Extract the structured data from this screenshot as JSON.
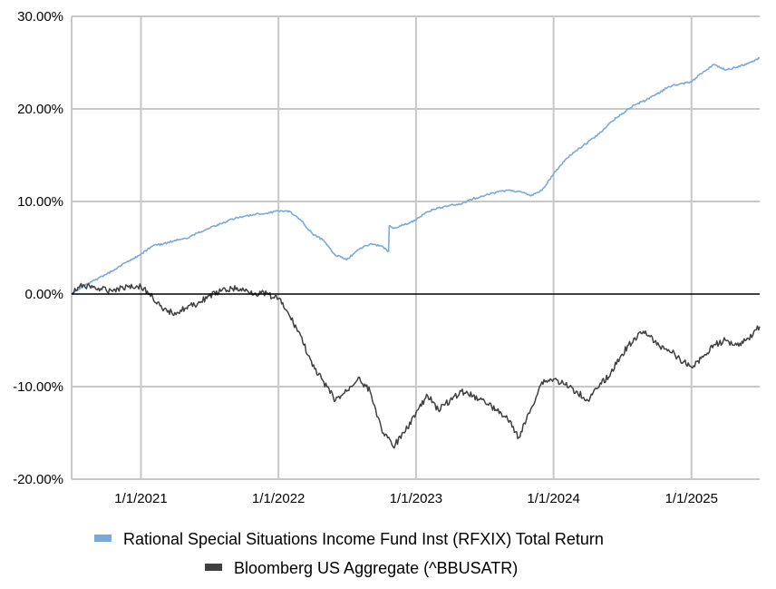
{
  "chart_data": {
    "type": "line",
    "title": "",
    "xlabel": "",
    "ylabel": "",
    "x_tick_labels": [
      "1/1/2021",
      "1/1/2022",
      "1/1/2023",
      "1/1/2024",
      "1/1/2025"
    ],
    "y_tick_labels": [
      "30.00%",
      "20.00%",
      "10.00%",
      "0.00%",
      "-10.00%",
      "-20.00%"
    ],
    "y_tick_values": [
      30,
      20,
      10,
      0,
      -10,
      -20
    ],
    "xlim": [
      "2020-07-01",
      "2025-07-01"
    ],
    "ylim": [
      -20,
      30
    ],
    "y_unit": "percent",
    "grid": true,
    "legend_position": "bottom",
    "series": [
      {
        "name": "Rational Special Situations Income Fund Inst (RFXIX) Total Return",
        "color": "#7aaadc",
        "points": [
          [
            "2020-07-01",
            0.0
          ],
          [
            "2020-08-01",
            0.9
          ],
          [
            "2020-09-01",
            1.5
          ],
          [
            "2020-10-01",
            2.1
          ],
          [
            "2020-11-01",
            2.9
          ],
          [
            "2020-12-01",
            3.6
          ],
          [
            "2021-01-01",
            4.3
          ],
          [
            "2021-02-01",
            5.2
          ],
          [
            "2021-03-01",
            5.4
          ],
          [
            "2021-04-01",
            5.8
          ],
          [
            "2021-05-01",
            6.0
          ],
          [
            "2021-06-01",
            6.6
          ],
          [
            "2021-07-01",
            7.1
          ],
          [
            "2021-08-01",
            7.6
          ],
          [
            "2021-09-01",
            8.1
          ],
          [
            "2021-10-01",
            8.4
          ],
          [
            "2021-11-01",
            8.6
          ],
          [
            "2021-12-01",
            8.7
          ],
          [
            "2022-01-01",
            9.0
          ],
          [
            "2022-02-01",
            8.9
          ],
          [
            "2022-03-01",
            8.0
          ],
          [
            "2022-04-01",
            6.5
          ],
          [
            "2022-05-01",
            5.8
          ],
          [
            "2022-06-01",
            4.2
          ],
          [
            "2022-07-01",
            3.7
          ],
          [
            "2022-08-01",
            4.8
          ],
          [
            "2022-09-01",
            5.4
          ],
          [
            "2022-10-01",
            5.2
          ],
          [
            "2022-10-20",
            4.6
          ],
          [
            "2022-10-22",
            7.4
          ],
          [
            "2022-11-01",
            7.1
          ],
          [
            "2022-12-01",
            7.5
          ],
          [
            "2023-01-01",
            8.0
          ],
          [
            "2023-02-01",
            8.9
          ],
          [
            "2023-03-01",
            9.3
          ],
          [
            "2023-04-01",
            9.6
          ],
          [
            "2023-05-01",
            9.7
          ],
          [
            "2023-06-01",
            10.3
          ],
          [
            "2023-07-01",
            10.6
          ],
          [
            "2023-08-01",
            11.0
          ],
          [
            "2023-09-01",
            11.2
          ],
          [
            "2023-10-01",
            11.1
          ],
          [
            "2023-11-01",
            10.6
          ],
          [
            "2023-12-01",
            11.2
          ],
          [
            "2024-01-01",
            13.0
          ],
          [
            "2024-02-01",
            14.5
          ],
          [
            "2024-03-01",
            15.5
          ],
          [
            "2024-04-01",
            16.4
          ],
          [
            "2024-05-01",
            17.3
          ],
          [
            "2024-06-01",
            18.6
          ],
          [
            "2024-07-01",
            19.5
          ],
          [
            "2024-08-01",
            20.4
          ],
          [
            "2024-09-01",
            20.9
          ],
          [
            "2024-10-01",
            21.6
          ],
          [
            "2024-11-01",
            22.4
          ],
          [
            "2024-12-01",
            22.7
          ],
          [
            "2025-01-01",
            22.9
          ],
          [
            "2025-02-01",
            24.0
          ],
          [
            "2025-03-01",
            24.8
          ],
          [
            "2025-04-01",
            24.2
          ],
          [
            "2025-05-01",
            24.5
          ],
          [
            "2025-06-01",
            24.9
          ],
          [
            "2025-07-01",
            25.5
          ]
        ]
      },
      {
        "name": "Bloomberg US Aggregate (^BBUSATR)",
        "color": "#404040",
        "points": [
          [
            "2020-07-01",
            0.0
          ],
          [
            "2020-08-01",
            1.0
          ],
          [
            "2020-09-01",
            0.7
          ],
          [
            "2020-10-01",
            0.4
          ],
          [
            "2020-11-01",
            0.6
          ],
          [
            "2020-12-01",
            0.9
          ],
          [
            "2021-01-01",
            0.8
          ],
          [
            "2021-02-01",
            -0.3
          ],
          [
            "2021-03-01",
            -1.8
          ],
          [
            "2021-04-01",
            -2.0
          ],
          [
            "2021-05-01",
            -1.5
          ],
          [
            "2021-06-01",
            -1.0
          ],
          [
            "2021-07-01",
            -0.2
          ],
          [
            "2021-08-01",
            0.3
          ],
          [
            "2021-09-01",
            0.6
          ],
          [
            "2021-10-01",
            0.4
          ],
          [
            "2021-11-01",
            0.1
          ],
          [
            "2021-12-01",
            0.0
          ],
          [
            "2022-01-01",
            -0.5
          ],
          [
            "2022-02-01",
            -2.5
          ],
          [
            "2022-03-01",
            -4.5
          ],
          [
            "2022-04-01",
            -7.8
          ],
          [
            "2022-05-01",
            -9.5
          ],
          [
            "2022-06-01",
            -11.5
          ],
          [
            "2022-07-01",
            -10.5
          ],
          [
            "2022-08-01",
            -9.0
          ],
          [
            "2022-09-01",
            -10.5
          ],
          [
            "2022-10-01",
            -14.5
          ],
          [
            "2022-11-01",
            -16.5
          ],
          [
            "2022-12-01",
            -15.0
          ],
          [
            "2023-01-01",
            -12.8
          ],
          [
            "2023-02-01",
            -11.0
          ],
          [
            "2023-03-01",
            -12.5
          ],
          [
            "2023-04-01",
            -11.5
          ],
          [
            "2023-05-01",
            -10.5
          ],
          [
            "2023-06-01",
            -11.0
          ],
          [
            "2023-07-01",
            -11.5
          ],
          [
            "2023-08-01",
            -12.5
          ],
          [
            "2023-09-01",
            -13.5
          ],
          [
            "2023-10-01",
            -15.5
          ],
          [
            "2023-11-01",
            -12.5
          ],
          [
            "2023-12-01",
            -9.5
          ],
          [
            "2024-01-01",
            -9.2
          ],
          [
            "2024-02-01",
            -9.8
          ],
          [
            "2024-03-01",
            -10.5
          ],
          [
            "2024-04-01",
            -11.5
          ],
          [
            "2024-05-01",
            -10.0
          ],
          [
            "2024-06-01",
            -8.5
          ],
          [
            "2024-07-01",
            -6.5
          ],
          [
            "2024-08-01",
            -4.8
          ],
          [
            "2024-09-01",
            -4.0
          ],
          [
            "2024-10-01",
            -5.5
          ],
          [
            "2024-11-01",
            -6.0
          ],
          [
            "2024-12-01",
            -7.0
          ],
          [
            "2025-01-01",
            -7.9
          ],
          [
            "2025-02-01",
            -6.8
          ],
          [
            "2025-03-01",
            -5.5
          ],
          [
            "2025-04-01",
            -5.0
          ],
          [
            "2025-05-01",
            -5.5
          ],
          [
            "2025-06-01",
            -4.8
          ],
          [
            "2025-07-01",
            -3.5
          ]
        ]
      }
    ]
  }
}
